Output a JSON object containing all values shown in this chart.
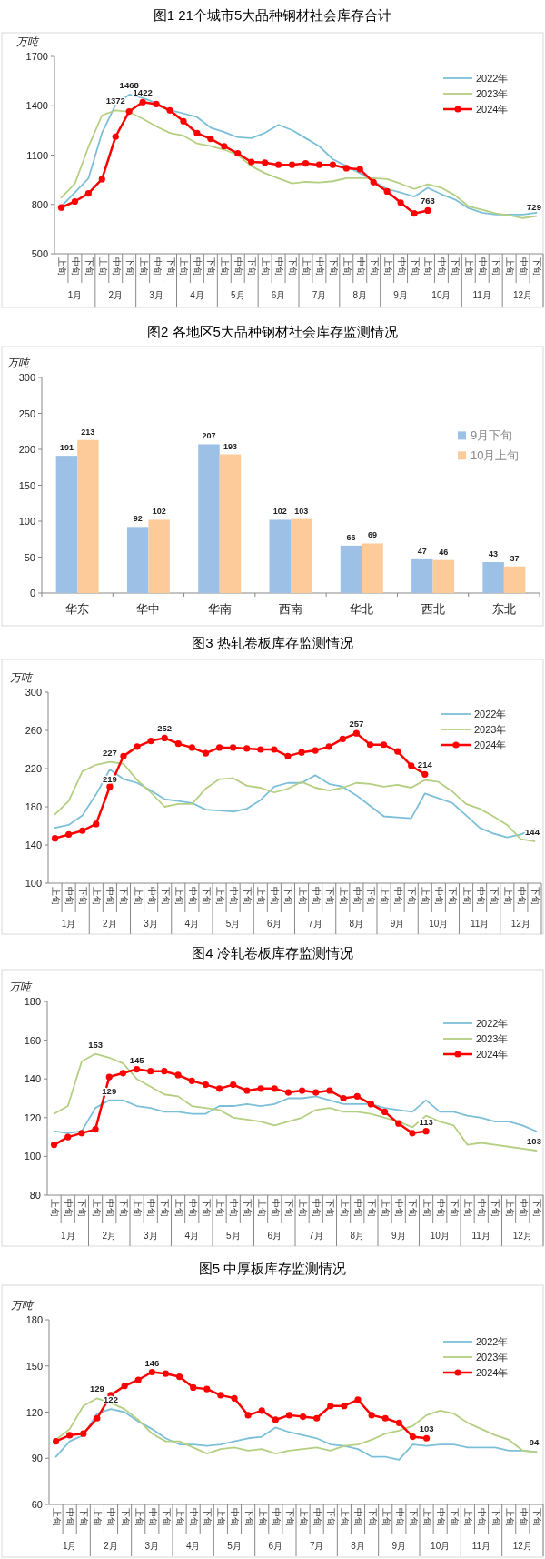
{
  "chart_data": [
    {
      "type": "line",
      "title": "图1  21个城市5大品种钢材社会库存合计",
      "ylabel": "万吨",
      "ylim": [
        500,
        1700
      ],
      "yticks": [
        500,
        800,
        1100,
        1400,
        1700
      ],
      "legend": "top right",
      "categories": [
        "上旬",
        "中旬",
        "下旬",
        "上旬",
        "中旬",
        "下旬",
        "上旬",
        "中旬",
        "下旬",
        "上旬",
        "中旬",
        "下旬",
        "上旬",
        "中旬",
        "下旬",
        "上旬",
        "中旬",
        "下旬",
        "上旬",
        "中旬",
        "下旬",
        "上旬",
        "中旬",
        "下旬",
        "上旬",
        "中旬",
        "下旬",
        "上旬",
        "中旬",
        "下旬",
        "上旬",
        "中旬",
        "下旬",
        "上旬",
        "中旬",
        "下旬"
      ],
      "annotations": [
        "1月",
        "2月",
        "3月",
        "4月",
        "5月",
        "6月",
        "7月",
        "8月",
        "9月",
        "10月",
        "11月",
        "12月"
      ],
      "series": [
        {
          "name": "2022年",
          "color": "#7cc0d8",
          "values": [
            788,
            873,
            958,
            1235,
            1406,
            1468,
            1448,
            1416,
            1374,
            1353,
            1331,
            1267,
            1240,
            1208,
            1203,
            1235,
            1284,
            1252,
            1203,
            1154,
            1075,
            1033,
            990,
            941,
            894,
            873,
            847,
            901,
            862,
            830,
            777,
            749,
            739,
            739,
            739,
            749
          ],
          "value_labels": [
            null,
            null,
            null,
            null,
            null,
            "1468",
            null,
            null,
            null,
            null,
            null,
            null,
            null,
            null,
            null,
            null,
            null,
            null,
            null,
            null,
            null,
            null,
            null,
            null,
            null,
            null,
            null,
            null,
            null,
            null,
            null,
            null,
            null,
            null,
            null,
            null
          ]
        },
        {
          "name": "2023年",
          "color": "#b5cf82",
          "values": [
            841,
            926,
            1150,
            1342,
            1372,
            1363,
            1321,
            1274,
            1235,
            1218,
            1171,
            1154,
            1133,
            1101,
            1033,
            990,
            958,
            928,
            937,
            933,
            941,
            960,
            960,
            960,
            954,
            926,
            894,
            922,
            901,
            856,
            788,
            767,
            745,
            734,
            717,
            729
          ],
          "value_labels": [
            null,
            null,
            null,
            null,
            "1372",
            null,
            null,
            null,
            null,
            null,
            null,
            null,
            null,
            null,
            null,
            null,
            null,
            null,
            null,
            null,
            null,
            null,
            null,
            null,
            null,
            null,
            null,
            null,
            null,
            null,
            null,
            null,
            null,
            null,
            null,
            "729"
          ]
        },
        {
          "name": "2024年",
          "color": "#ff0000",
          "marker": "circle",
          "values": [
            781,
            818,
            867,
            954,
            1212,
            1365,
            1422,
            1410,
            1372,
            1306,
            1233,
            1199,
            1154,
            1110,
            1058,
            1054,
            1041,
            1041,
            1050,
            1041,
            1041,
            1020,
            1014,
            935,
            879,
            811,
            745,
            763,
            null,
            null,
            null,
            null,
            null,
            null,
            null,
            null
          ],
          "value_labels": [
            null,
            null,
            null,
            null,
            null,
            null,
            "1422",
            null,
            null,
            null,
            null,
            null,
            null,
            null,
            null,
            null,
            null,
            null,
            null,
            null,
            null,
            null,
            null,
            null,
            null,
            null,
            null,
            "763",
            null,
            null,
            null,
            null,
            null,
            null,
            null,
            null
          ]
        }
      ]
    },
    {
      "type": "bar",
      "title": "图2  各地区5大品种钢材社会库存监测情况",
      "ylabel": "万吨",
      "ylim": [
        0,
        300
      ],
      "yticks": [
        0,
        50,
        100,
        150,
        200,
        250,
        300
      ],
      "legend": "right",
      "data_labels": true,
      "categories": [
        "华东",
        "华中",
        "华南",
        "西南",
        "华北",
        "西北",
        "东北"
      ],
      "series": [
        {
          "name": "9月下旬",
          "color": "#9dc0e6",
          "values": [
            191,
            92,
            207,
            102,
            66,
            47,
            43
          ]
        },
        {
          "name": "10月上旬",
          "color": "#fccb99",
          "values": [
            213,
            102,
            193,
            103,
            69,
            46,
            37
          ]
        }
      ]
    },
    {
      "type": "line",
      "title": "图3  热轧卷板库存监测情况",
      "ylabel": "万吨",
      "ylim": [
        100,
        300
      ],
      "yticks": [
        100,
        140,
        180,
        220,
        260,
        300
      ],
      "legend": "top right",
      "categories": [
        "上旬",
        "中旬",
        "下旬",
        "上旬",
        "中旬",
        "下旬",
        "上旬",
        "中旬",
        "下旬",
        "上旬",
        "中旬",
        "下旬",
        "上旬",
        "中旬",
        "下旬",
        "上旬",
        "中旬",
        "下旬",
        "上旬",
        "中旬",
        "下旬",
        "上旬",
        "中旬",
        "下旬",
        "上旬",
        "中旬",
        "下旬",
        "上旬",
        "中旬",
        "下旬",
        "上旬",
        "中旬",
        "下旬",
        "上旬",
        "中旬",
        "下旬"
      ],
      "annotations": [
        "1月",
        "2月",
        "3月",
        "4月",
        "5月",
        "6月",
        "7月",
        "8月",
        "9月",
        "10月",
        "11月",
        "12月"
      ],
      "series": [
        {
          "name": "2022年",
          "color": "#7cc0d8",
          "values": [
            158,
            161,
            171,
            193,
            219,
            209,
            205,
            197,
            188,
            186,
            184,
            177,
            176,
            175,
            178,
            187,
            201,
            205,
            205,
            213,
            204,
            201,
            192,
            181,
            170,
            169,
            168,
            194,
            189,
            184,
            171,
            158,
            152,
            148,
            151,
            157
          ],
          "value_labels": [
            null,
            null,
            null,
            null,
            "219",
            null,
            null,
            null,
            null,
            null,
            null,
            null,
            null,
            null,
            null,
            null,
            null,
            null,
            null,
            null,
            null,
            null,
            null,
            null,
            null,
            null,
            null,
            null,
            null,
            null,
            null,
            null,
            null,
            null,
            null,
            null
          ]
        },
        {
          "name": "2023年",
          "color": "#b5cf82",
          "values": [
            172,
            186,
            217,
            224,
            227,
            225,
            208,
            195,
            180,
            183,
            183,
            199,
            209,
            210,
            202,
            200,
            195,
            199,
            206,
            200,
            197,
            200,
            205,
            204,
            201,
            203,
            200,
            208,
            206,
            196,
            183,
            178,
            170,
            161,
            146,
            144
          ],
          "value_labels": [
            null,
            null,
            null,
            null,
            "227",
            null,
            null,
            null,
            null,
            null,
            null,
            null,
            null,
            null,
            null,
            null,
            null,
            null,
            null,
            null,
            null,
            null,
            null,
            null,
            null,
            null,
            null,
            null,
            null,
            null,
            null,
            null,
            null,
            null,
            null,
            "144"
          ]
        },
        {
          "name": "2024年",
          "color": "#ff0000",
          "marker": "circle",
          "values": [
            147,
            151,
            155,
            162,
            201,
            233,
            243,
            249,
            252,
            246,
            242,
            236,
            242,
            242,
            241,
            240,
            240,
            233,
            237,
            239,
            243,
            251,
            257,
            245,
            245,
            238,
            223,
            214,
            null,
            null,
            null,
            null,
            null,
            null,
            null,
            null
          ],
          "value_labels": [
            null,
            null,
            null,
            null,
            null,
            null,
            null,
            null,
            "252",
            null,
            null,
            null,
            null,
            null,
            null,
            null,
            null,
            null,
            null,
            null,
            null,
            null,
            "257",
            null,
            null,
            null,
            null,
            "214",
            null,
            null,
            null,
            null,
            null,
            null,
            null,
            null
          ]
        }
      ]
    },
    {
      "type": "line",
      "title": "图4  冷轧卷板库存监测情况",
      "ylabel": "万吨",
      "ylim": [
        80,
        180
      ],
      "yticks": [
        80,
        100,
        120,
        140,
        160,
        180
      ],
      "legend": "top right",
      "categories": [
        "上旬",
        "中旬",
        "下旬",
        "上旬",
        "中旬",
        "下旬",
        "上旬",
        "中旬",
        "下旬",
        "上旬",
        "中旬",
        "下旬",
        "上旬",
        "中旬",
        "下旬",
        "上旬",
        "中旬",
        "下旬",
        "上旬",
        "中旬",
        "下旬",
        "上旬",
        "中旬",
        "下旬",
        "上旬",
        "中旬",
        "下旬",
        "上旬",
        "中旬",
        "下旬",
        "上旬",
        "中旬",
        "下旬",
        "上旬",
        "中旬",
        "下旬"
      ],
      "annotations": [
        "1月",
        "2月",
        "3月",
        "4月",
        "5月",
        "6月",
        "7月",
        "8月",
        "9月",
        "10月",
        "11月",
        "12月"
      ],
      "series": [
        {
          "name": "2022年",
          "color": "#7cc0d8",
          "values": [
            113,
            112,
            113,
            125,
            129,
            129,
            126,
            125,
            123,
            123,
            122,
            122,
            126,
            126,
            127,
            126,
            127,
            130,
            130,
            131,
            129,
            127,
            127,
            127,
            125,
            124,
            123,
            129,
            123,
            123,
            121,
            120,
            118,
            118,
            116,
            113
          ],
          "value_labels": [
            null,
            null,
            null,
            null,
            "129",
            null,
            null,
            null,
            null,
            null,
            null,
            null,
            null,
            null,
            null,
            null,
            null,
            null,
            null,
            null,
            null,
            null,
            null,
            null,
            null,
            null,
            null,
            null,
            null,
            null,
            null,
            null,
            null,
            null,
            null,
            null
          ]
        },
        {
          "name": "2023年",
          "color": "#b5cf82",
          "values": [
            122,
            126,
            149,
            153,
            151,
            148,
            140,
            136,
            132,
            131,
            126,
            125,
            124,
            120,
            119,
            118,
            116,
            118,
            120,
            124,
            125,
            123,
            123,
            122,
            120,
            118,
            115,
            121,
            118,
            116,
            106,
            107,
            106,
            105,
            104,
            103
          ],
          "value_labels": [
            null,
            null,
            null,
            "153",
            null,
            null,
            null,
            null,
            null,
            null,
            null,
            null,
            null,
            null,
            null,
            null,
            null,
            null,
            null,
            null,
            null,
            null,
            null,
            null,
            null,
            null,
            null,
            null,
            null,
            null,
            null,
            null,
            null,
            null,
            null,
            "103"
          ]
        },
        {
          "name": "2024年",
          "color": "#ff0000",
          "marker": "circle",
          "values": [
            106,
            110,
            112,
            114,
            141,
            143,
            145,
            144,
            144,
            142,
            139,
            137,
            135,
            137,
            134,
            135,
            135,
            133,
            134,
            133,
            134,
            130,
            131,
            127,
            123,
            117,
            112,
            113,
            null,
            null,
            null,
            null,
            null,
            null,
            null,
            null
          ],
          "value_labels": [
            null,
            null,
            null,
            null,
            null,
            null,
            "145",
            null,
            null,
            null,
            null,
            null,
            null,
            null,
            null,
            null,
            null,
            null,
            null,
            null,
            null,
            null,
            null,
            null,
            null,
            null,
            null,
            "113",
            null,
            null,
            null,
            null,
            null,
            null,
            null,
            null
          ]
        }
      ]
    },
    {
      "type": "line",
      "title": "图5  中厚板库存监测情况",
      "ylabel": "万吨",
      "ylim": [
        60,
        180
      ],
      "yticks": [
        60,
        90,
        120,
        150,
        180
      ],
      "legend": "top right",
      "categories": [
        "上旬",
        "中旬",
        "下旬",
        "上旬",
        "中旬",
        "下旬",
        "上旬",
        "中旬",
        "下旬",
        "上旬",
        "中旬",
        "下旬",
        "上旬",
        "中旬",
        "下旬",
        "上旬",
        "中旬",
        "下旬",
        "上旬",
        "中旬",
        "下旬",
        "上旬",
        "中旬",
        "下旬",
        "上旬",
        "中旬",
        "下旬",
        "上旬",
        "中旬",
        "下旬",
        "上旬",
        "中旬",
        "下旬",
        "上旬",
        "中旬",
        "下旬"
      ],
      "annotations": [
        "1月",
        "2月",
        "3月",
        "4月",
        "5月",
        "6月",
        "7月",
        "8月",
        "9月",
        "10月",
        "11月",
        "12月"
      ],
      "series": [
        {
          "name": "2022年",
          "color": "#7cc0d8",
          "values": [
            91,
            101,
            105,
            119,
            122,
            120,
            114,
            109,
            103,
            99,
            99,
            98,
            99,
            101,
            103,
            104,
            110,
            107,
            105,
            103,
            99,
            98,
            96,
            91,
            91,
            89,
            99,
            98,
            99,
            99,
            97,
            97,
            97,
            95,
            95,
            94
          ],
          "value_labels": [
            null,
            null,
            null,
            null,
            "122",
            null,
            null,
            null,
            null,
            null,
            null,
            null,
            null,
            null,
            null,
            null,
            null,
            null,
            null,
            null,
            null,
            null,
            null,
            null,
            null,
            null,
            null,
            null,
            null,
            null,
            null,
            null,
            null,
            null,
            null,
            null
          ]
        },
        {
          "name": "2023年",
          "color": "#b5cf82",
          "values": [
            102,
            109,
            124,
            129,
            126,
            122,
            115,
            106,
            101,
            101,
            97,
            93,
            96,
            97,
            95,
            96,
            93,
            95,
            96,
            97,
            95,
            98,
            99,
            102,
            106,
            108,
            111,
            118,
            121,
            119,
            113,
            109,
            105,
            102,
            95,
            94
          ],
          "value_labels": [
            null,
            null,
            null,
            "129",
            null,
            null,
            null,
            null,
            null,
            null,
            null,
            null,
            null,
            null,
            null,
            null,
            null,
            null,
            null,
            null,
            null,
            null,
            null,
            null,
            null,
            null,
            null,
            null,
            null,
            null,
            null,
            null,
            null,
            null,
            null,
            "94"
          ]
        },
        {
          "name": "2024年",
          "color": "#ff0000",
          "marker": "circle",
          "values": [
            101,
            105,
            106,
            116,
            131,
            137,
            141,
            146,
            145,
            143,
            136,
            135,
            131,
            129,
            118,
            121,
            115,
            118,
            117,
            116,
            124,
            124,
            128,
            118,
            116,
            113,
            104,
            103,
            null,
            null,
            null,
            null,
            null,
            null,
            null,
            null
          ],
          "value_labels": [
            null,
            null,
            null,
            null,
            null,
            null,
            null,
            "146",
            null,
            null,
            null,
            null,
            null,
            null,
            null,
            null,
            null,
            null,
            null,
            null,
            null,
            null,
            null,
            null,
            null,
            null,
            null,
            "103",
            null,
            null,
            null,
            null,
            null,
            null,
            null,
            null
          ]
        }
      ]
    }
  ]
}
